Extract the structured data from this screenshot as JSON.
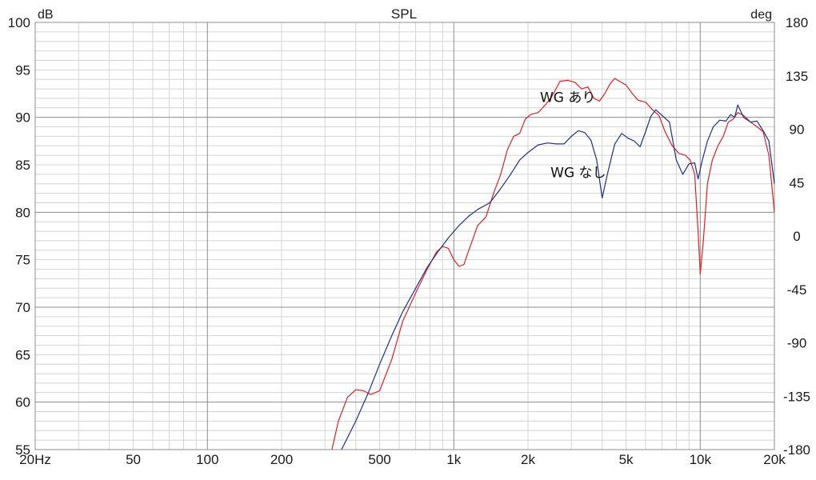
{
  "chart_data": {
    "type": "line",
    "title": "SPL",
    "xlabel": "",
    "ylabel": "dB",
    "y2label": "deg",
    "x_scale": "log",
    "xlim": [
      20,
      20000
    ],
    "ylim": [
      55,
      100
    ],
    "y2lim": [
      -180,
      180
    ],
    "grid": true,
    "x_tick_values": [
      20,
      50,
      100,
      200,
      500,
      1000,
      2000,
      5000,
      10000,
      20000
    ],
    "x_tick_labels": [
      "20Hz",
      "50",
      "100",
      "200",
      "500",
      "1k",
      "2k",
      "5k",
      "10k",
      "20k"
    ],
    "y_ticks": [
      55,
      60,
      65,
      70,
      75,
      80,
      85,
      90,
      95,
      100
    ],
    "y2_ticks": [
      -180,
      -135,
      -90,
      -45,
      0,
      45,
      90,
      135,
      180
    ],
    "annotations": [
      {
        "text": "WG あり",
        "x": 2900,
        "y": 91.6
      },
      {
        "text": "WG なし",
        "x": 3200,
        "y": 83.7
      }
    ],
    "series": [
      {
        "name": "WG あり",
        "color": "#e02020",
        "x": [
          320,
          340,
          370,
          400,
          430,
          460,
          500,
          560,
          620,
          700,
          780,
          850,
          900,
          950,
          1000,
          1050,
          1100,
          1150,
          1250,
          1350,
          1450,
          1550,
          1650,
          1750,
          1850,
          1950,
          2050,
          2200,
          2350,
          2500,
          2700,
          2900,
          3100,
          3300,
          3500,
          3700,
          3900,
          4100,
          4300,
          4500,
          4700,
          5000,
          5300,
          5600,
          6000,
          6400,
          6800,
          7200,
          7700,
          8200,
          8700,
          9100,
          9500,
          9800,
          10000,
          10300,
          10700,
          11200,
          11800,
          12400,
          13000,
          13600,
          14200,
          15000,
          16000,
          17000,
          18000,
          19000,
          20000
        ],
        "y": [
          55,
          58,
          60.5,
          61.3,
          61.2,
          60.8,
          61.2,
          64.5,
          68.5,
          71.5,
          74,
          75.8,
          76.4,
          76.2,
          75,
          74.3,
          74.5,
          76,
          78.6,
          79.5,
          82,
          84,
          86.6,
          88,
          88.3,
          89.8,
          90.3,
          90.5,
          91.3,
          92.2,
          93.8,
          93.9,
          93.7,
          93,
          93.2,
          92,
          91.7,
          92.5,
          93.5,
          94.1,
          93.8,
          93.4,
          92.5,
          91.8,
          91.6,
          90.8,
          90.2,
          88.5,
          87,
          86.2,
          86,
          85.5,
          84,
          78,
          73.5,
          77,
          83,
          85.5,
          87,
          88,
          89.5,
          89.8,
          90.5,
          90.2,
          89.5,
          89,
          88.5,
          86,
          80
        ]
      },
      {
        "name": "WG なし",
        "color": "#1f2f8a",
        "x": [
          350,
          400,
          450,
          500,
          560,
          620,
          700,
          780,
          860,
          950,
          1050,
          1150,
          1250,
          1400,
          1550,
          1700,
          1850,
          2000,
          2200,
          2400,
          2600,
          2800,
          3000,
          3200,
          3400,
          3600,
          3800,
          4000,
          4200,
          4500,
          4800,
          5100,
          5400,
          5700,
          6000,
          6300,
          6600,
          7000,
          7500,
          8000,
          8500,
          9000,
          9500,
          9800,
          10200,
          10700,
          11300,
          12000,
          12700,
          13300,
          13800,
          14200,
          15000,
          16000,
          17000,
          18000,
          19000,
          20000
        ],
        "y": [
          55,
          58,
          61,
          64,
          67,
          69.5,
          72,
          74.2,
          75.8,
          77.3,
          78.6,
          79.6,
          80.3,
          81,
          82.5,
          84,
          85.5,
          86.3,
          87.1,
          87.3,
          87.2,
          87.2,
          88,
          88.6,
          88.4,
          87.6,
          85.5,
          81.5,
          84,
          87.2,
          88.3,
          87.8,
          87.5,
          86.9,
          88.5,
          90.1,
          90.8,
          90.2,
          89.5,
          85.5,
          84,
          85.1,
          85.2,
          83.5,
          85.5,
          87.5,
          89,
          89.7,
          89.6,
          90.3,
          90,
          91.3,
          90,
          89.5,
          89.6,
          88.6,
          87.5,
          83
        ]
      }
    ]
  }
}
